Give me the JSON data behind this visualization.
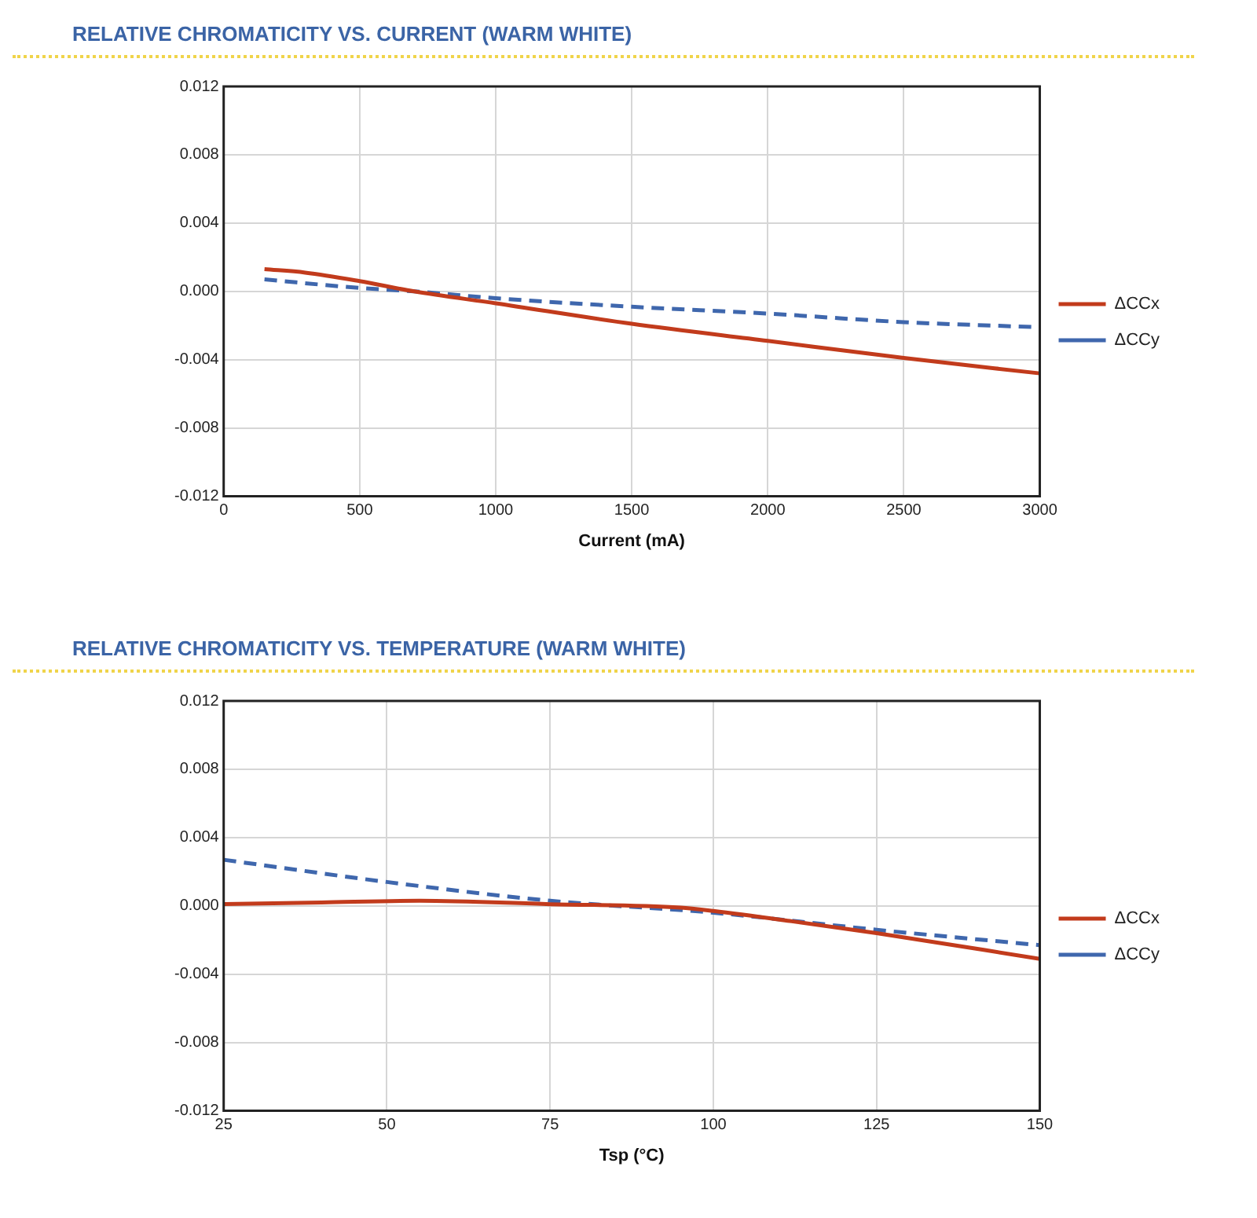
{
  "chart_data": [
    {
      "type": "line",
      "title": "RELATIVE CHROMATICITY VS. CURRENT (WARM WHITE)",
      "xlabel": "Current (mA)",
      "xlim": [
        0,
        3000
      ],
      "xticks": [
        0,
        500,
        1000,
        1500,
        2000,
        2500,
        3000
      ],
      "ylim": [
        -0.012,
        0.012
      ],
      "yticks": [
        -0.012,
        -0.008,
        -0.004,
        {
          "value": 0,
          "label": "0.000"
        },
        0.004,
        0.008,
        0.012
      ],
      "grid": true,
      "legend": "right",
      "marker": "none",
      "series": [
        {
          "name": "ΔCCx",
          "color": "#c23b1c",
          "line_style": "solid",
          "x": [
            150,
            300,
            500,
            700,
            1000,
            1500,
            2000,
            2500,
            3000
          ],
          "values": [
            0.0013,
            0.0011,
            0.0006,
            0.0,
            -0.0007,
            -0.0019,
            -0.0029,
            -0.0039,
            -0.0048
          ]
        },
        {
          "name": "ΔCCy",
          "color": "#3f67ad",
          "line_style": "dashed",
          "x": [
            150,
            500,
            700,
            1000,
            1500,
            2000,
            2500,
            3000
          ],
          "values": [
            0.0007,
            0.0002,
            0.0,
            -0.0004,
            -0.0009,
            -0.0013,
            -0.0018,
            -0.0021
          ]
        }
      ]
    },
    {
      "type": "line",
      "title": "RELATIVE CHROMATICITY VS. TEMPERATURE (WARM WHITE)",
      "xlabel": "Tsp (°C)",
      "xlim": [
        25,
        150
      ],
      "xticks": [
        25,
        50,
        75,
        100,
        125,
        150
      ],
      "ylim": [
        -0.012,
        0.012
      ],
      "yticks": [
        -0.012,
        -0.008,
        -0.004,
        {
          "value": 0,
          "label": "0.000"
        },
        0.004,
        0.008,
        0.012
      ],
      "grid": true,
      "legend": "right",
      "marker": "none",
      "series": [
        {
          "name": "ΔCCx",
          "color": "#c23b1c",
          "line_style": "solid",
          "x": [
            25,
            40,
            55,
            75,
            95,
            100,
            112,
            125,
            150
          ],
          "values": [
            0.0001,
            0.0002,
            0.0003,
            0.0001,
            -0.0001,
            -0.0003,
            -0.0009,
            -0.0016,
            -0.0031
          ]
        },
        {
          "name": "ΔCCy",
          "color": "#3f67ad",
          "line_style": "dashed",
          "x": [
            25,
            50,
            75,
            100,
            125,
            150
          ],
          "values": [
            0.0027,
            0.0014,
            0.0003,
            -0.0004,
            -0.0014,
            -0.0023
          ]
        }
      ]
    }
  ]
}
